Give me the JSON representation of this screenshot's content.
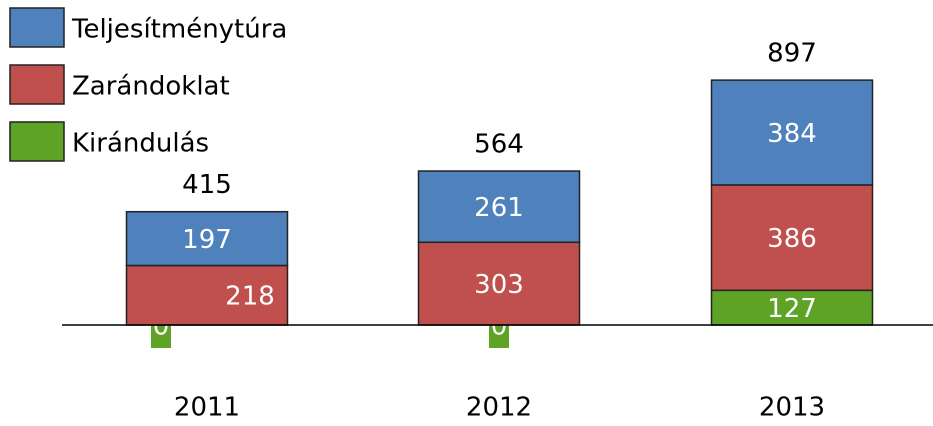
{
  "chart_data": {
    "type": "stacked_bar",
    "categories": [
      "2011",
      "2012",
      "2013"
    ],
    "series": [
      {
        "name": "Kirándulás",
        "color": "#5ea226",
        "values": [
          0,
          0,
          127
        ]
      },
      {
        "name": "Zarándoklat",
        "color": "#c0504d",
        "values": [
          218,
          303,
          386
        ]
      },
      {
        "name": "Teljesítménytúra",
        "color": "#4f81bd",
        "values": [
          197,
          261,
          384
        ]
      }
    ],
    "totals": [
      415,
      564,
      897
    ]
  }
}
